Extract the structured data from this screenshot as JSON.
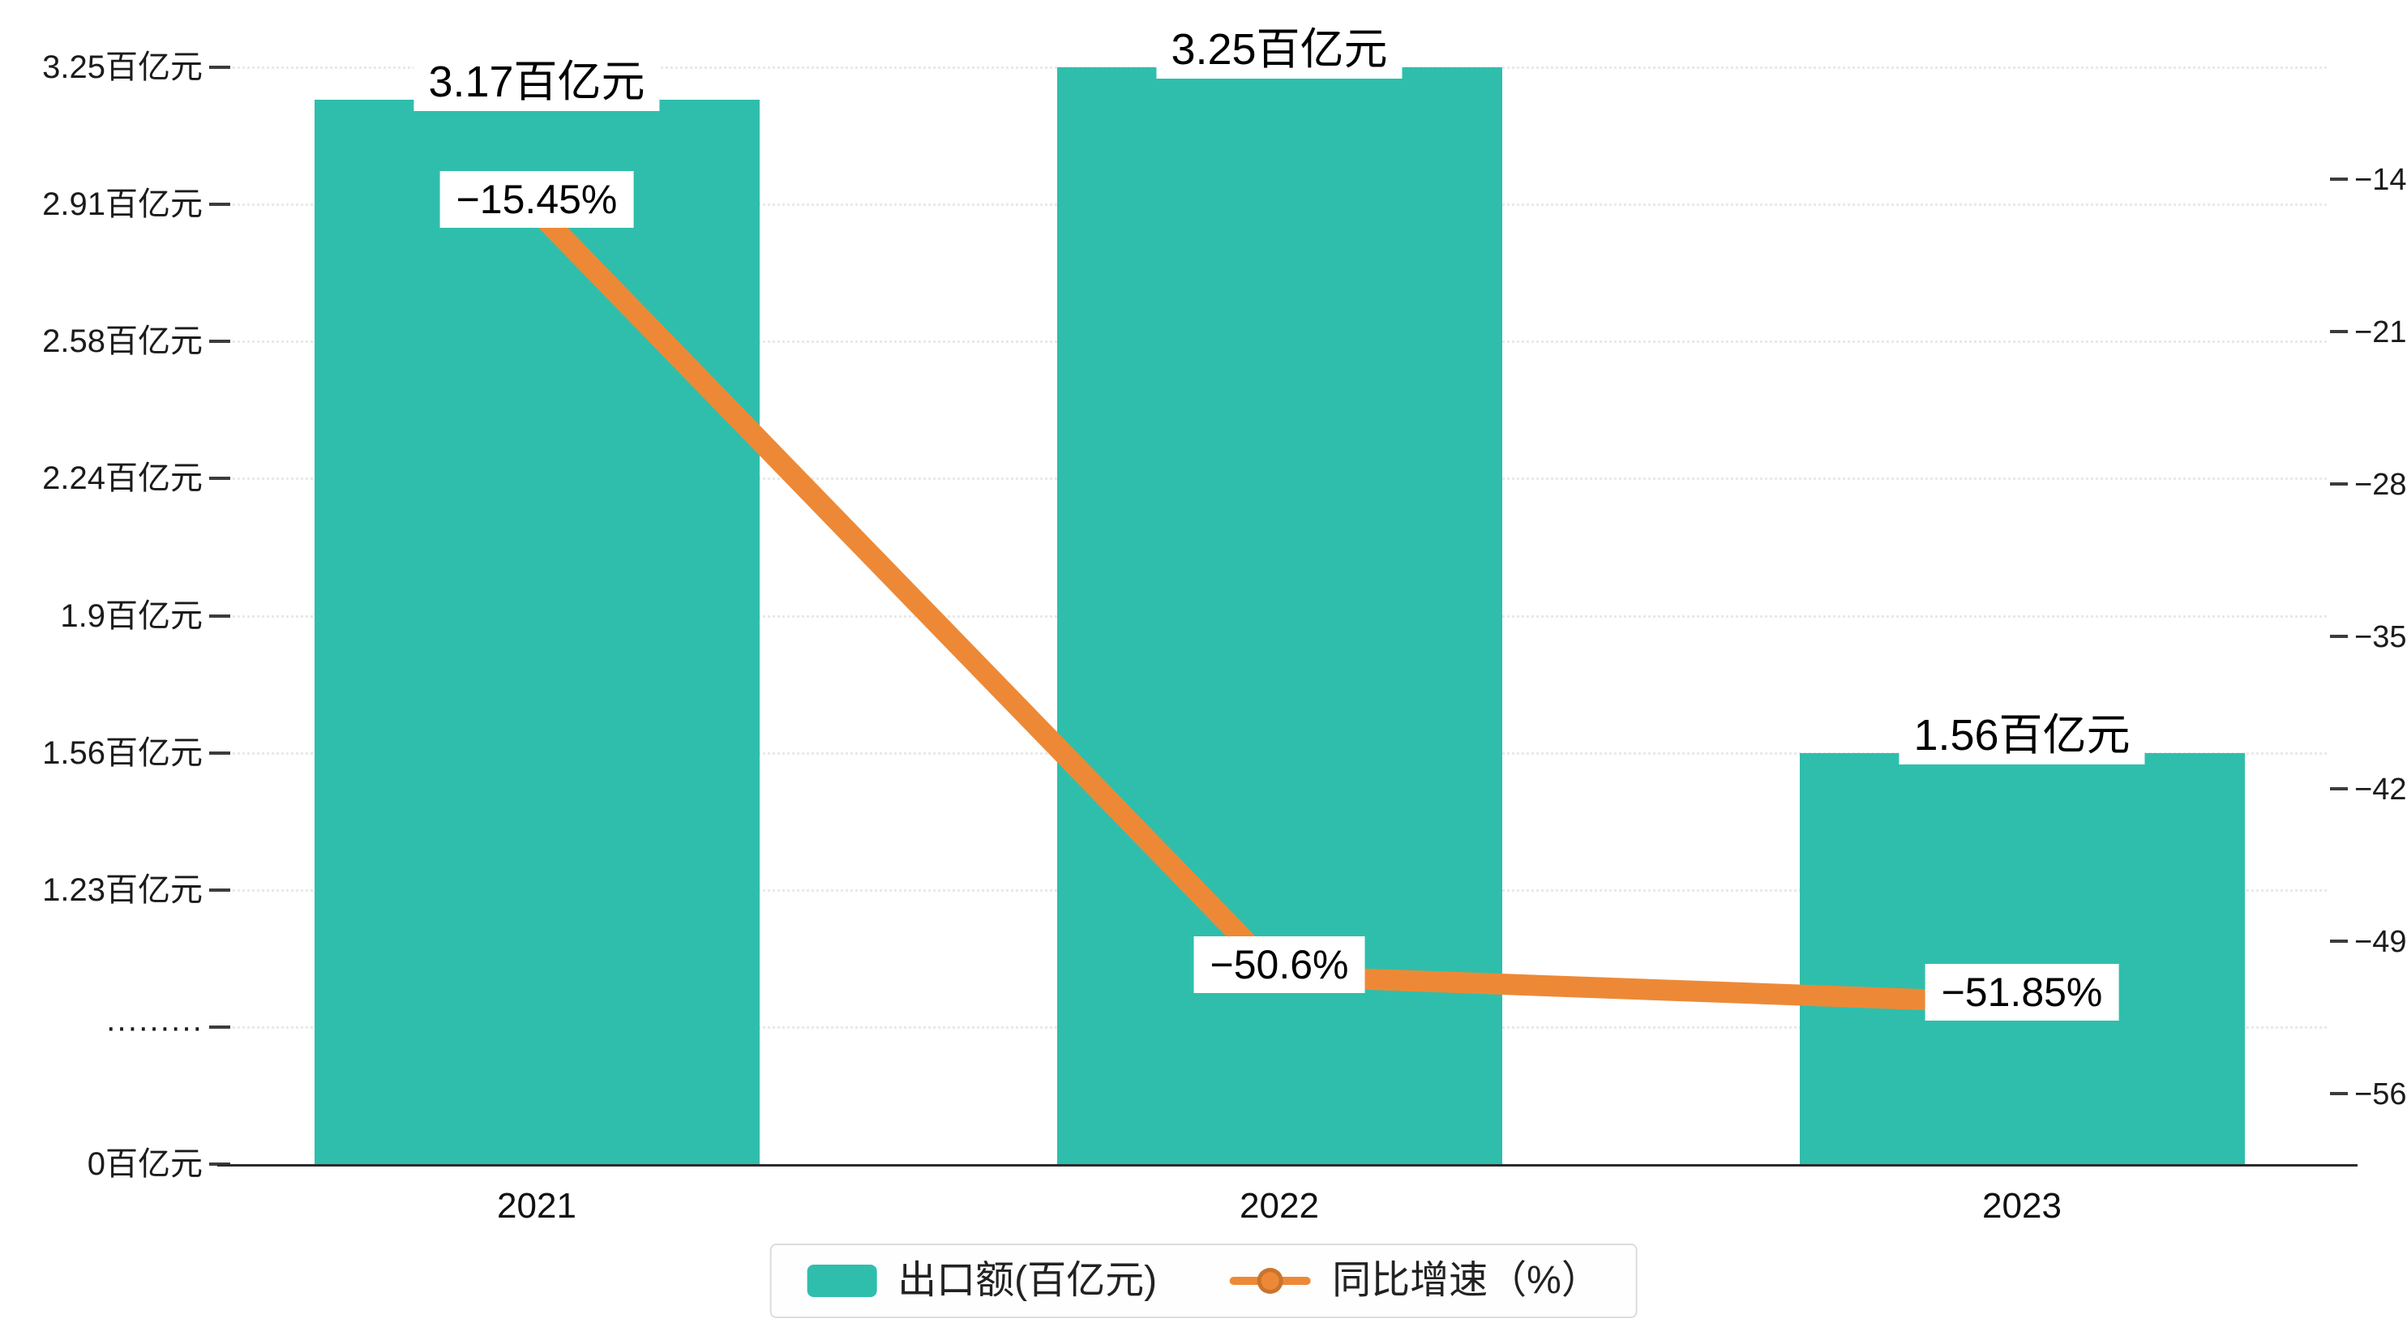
{
  "chart_data": {
    "type": "bar",
    "combo": "bar+line",
    "categories": [
      "2021",
      "2022",
      "2023"
    ],
    "series": [
      {
        "name": "出口额(百亿元)",
        "type": "bar",
        "axis": "left",
        "values": [
          3.17,
          3.25,
          1.56
        ],
        "value_labels": [
          "3.17百亿元",
          "3.25百亿元",
          "1.56百亿元"
        ],
        "color": "#2fbeac"
      },
      {
        "name": "同比增速（%）",
        "type": "line",
        "axis": "right",
        "values": [
          -15.45,
          -50.6,
          -51.85
        ],
        "value_labels": [
          "−15.45%",
          "−50.6%",
          "−51.85%"
        ],
        "color": "#ed8936"
      }
    ],
    "left_axis": {
      "tick_labels": [
        "3.25百亿元",
        "2.91百亿元",
        "2.58百亿元",
        "2.24百亿元",
        "1.9百亿元",
        "1.56百亿元",
        "1.23百亿元",
        "·········",
        "0百亿元"
      ],
      "tick_values": [
        3.25,
        2.91,
        2.58,
        2.24,
        1.9,
        1.56,
        1.23,
        0.615,
        0
      ],
      "range": [
        0,
        3.25
      ]
    },
    "right_axis": {
      "tick_labels": [
        "−14",
        "−21",
        "−28",
        "−35",
        "−42",
        "−49",
        "−56"
      ],
      "tick_values": [
        -14,
        -21,
        -28,
        -35,
        -42,
        -49,
        -56
      ],
      "range": [
        -56,
        -14
      ]
    },
    "grid": "dotted-horizontal",
    "legend_position": "bottom-center"
  },
  "legend": {
    "bar_label": "出口额(百亿元)",
    "line_label": "同比增速（%）"
  },
  "colors": {
    "bar": "#2fbeac",
    "line": "#ed8936",
    "axis": "#2b2b2b",
    "grid": "#e9e9e9",
    "label_text": "#000000"
  }
}
